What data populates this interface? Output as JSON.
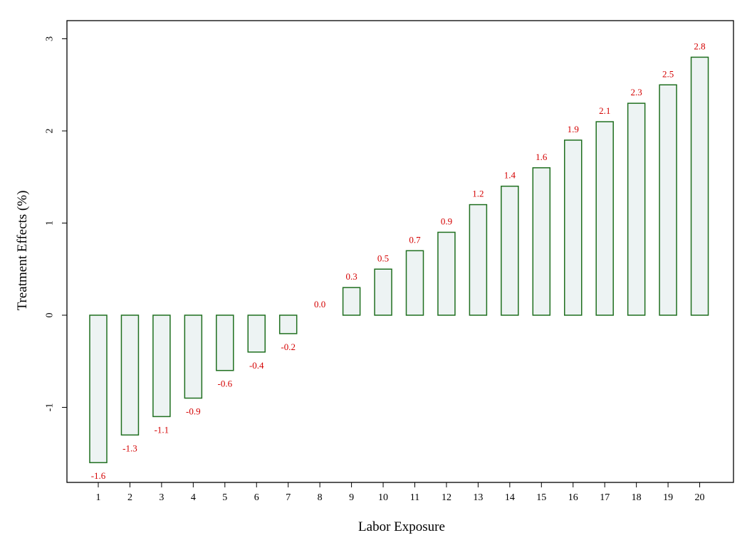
{
  "chart_data": {
    "type": "bar",
    "title": "",
    "xlabel": "Labor Exposure",
    "ylabel": "Treatment Effects (%)",
    "categories": [
      "1",
      "2",
      "3",
      "4",
      "5",
      "6",
      "7",
      "8",
      "9",
      "10",
      "11",
      "12",
      "13",
      "14",
      "15",
      "16",
      "17",
      "18",
      "19",
      "20"
    ],
    "values": [
      -1.6,
      -1.3,
      -1.1,
      -0.9,
      -0.6,
      -0.4,
      -0.2,
      0.0,
      0.3,
      0.5,
      0.7,
      0.9,
      1.2,
      1.4,
      1.6,
      1.9,
      2.1,
      2.3,
      2.5,
      2.8
    ],
    "value_labels": [
      "-1.6",
      "-1.3",
      "-1.1",
      "-0.9",
      "-0.6",
      "-0.4",
      "-0.2",
      "0.0",
      "0.3",
      "0.5",
      "0.7",
      "0.9",
      "1.2",
      "1.4",
      "1.6",
      "1.9",
      "2.1",
      "2.3",
      "2.5",
      "2.8"
    ],
    "yticks": [
      -1,
      0,
      1,
      2,
      3
    ],
    "ytick_labels": [
      "-1",
      "0",
      "1",
      "2",
      "3"
    ],
    "ylim": [
      -1.8,
      3.2
    ],
    "grid": false,
    "legend": "none",
    "colors": {
      "bar_fill": "#edf3f3",
      "bar_stroke": "#1f6f1f",
      "value_label": "#d40000",
      "axis": "#000000"
    }
  }
}
